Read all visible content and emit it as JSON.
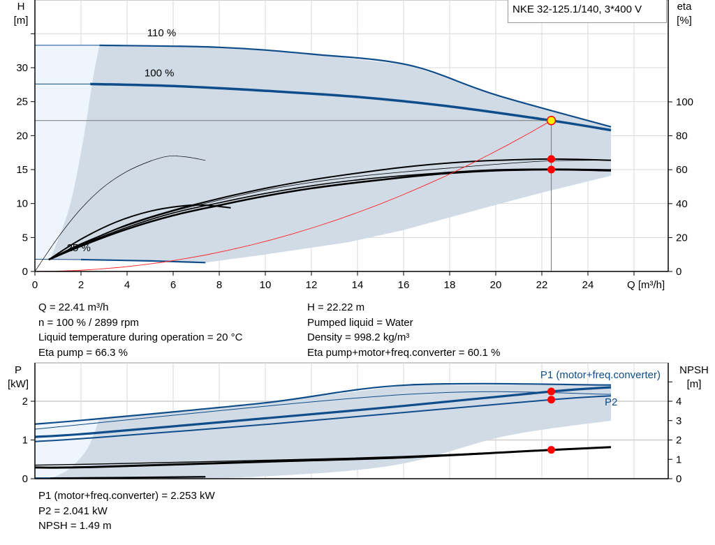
{
  "colors": {
    "curve_blue": "#0f4c8a",
    "area": "#d0dbe6",
    "area_light": "#eef5fd",
    "system_curve": "#ff2020",
    "duty_point": "#ffee00",
    "marker": "#ff0000",
    "grid": "#d9d9d9"
  },
  "title": "NKE 32-125.1/140, 3*400 V",
  "chart_data": [
    {
      "type": "line",
      "name": "head-efficiency",
      "ylabel_left": [
        "H",
        "[m]"
      ],
      "ylabel_right": [
        "eta",
        "[%]"
      ],
      "xlabel": "Q [m³/h]",
      "xlim": [
        0,
        27.5
      ],
      "ylim_left": [
        0,
        40
      ],
      "ylim_right": [
        0,
        160
      ],
      "x_ticks": [
        0,
        2,
        4,
        6,
        8,
        10,
        12,
        14,
        16,
        18,
        20,
        22,
        24
      ],
      "y_ticks_left": [
        0,
        5,
        10,
        15,
        20,
        25,
        30
      ],
      "y_ticks_right": [
        0,
        20,
        40,
        60,
        80,
        100
      ],
      "grid": true,
      "speed_labels": [
        {
          "text": "110 %",
          "x": 5.5,
          "y": 34.6
        },
        {
          "text": "100 %",
          "x": 5.4,
          "y": 28.7
        },
        {
          "text": "25 %",
          "x": 1.9,
          "y": 3.0
        }
      ],
      "head_curves": [
        {
          "speed": "110 %",
          "points": [
            [
              0,
              33.3
            ],
            [
              2.8,
              33.3
            ],
            [
              8,
              33
            ],
            [
              12,
              32
            ],
            [
              16.2,
              30.4
            ],
            [
              20,
              26
            ],
            [
              25,
              21.3
            ]
          ]
        },
        {
          "speed": "100 %",
          "points": [
            [
              0,
              27.6
            ],
            [
              2.4,
              27.6
            ],
            [
              6,
              27.3
            ],
            [
              10,
              26.6
            ],
            [
              14,
              25.7
            ],
            [
              18,
              24.3
            ],
            [
              22.41,
              22.22
            ],
            [
              25,
              20.8
            ]
          ]
        },
        {
          "speed": "25 %",
          "points": [
            [
              0,
              1.8
            ],
            [
              2,
              1.75
            ],
            [
              5,
              1.55
            ],
            [
              7.4,
              1.3
            ]
          ]
        }
      ],
      "operating_area_lower": [
        [
          25,
          14.1
        ],
        [
          22,
          11.6
        ],
        [
          20,
          9.8
        ],
        [
          16,
          6.1
        ],
        [
          13.6,
          4.3
        ],
        [
          10,
          2.5
        ],
        [
          7.4,
          1.3
        ]
      ],
      "operating_area_left": [
        [
          0.67,
          1.8
        ],
        [
          1.5,
          9.5
        ],
        [
          2.1,
          19.4
        ],
        [
          2.5,
          28
        ],
        [
          2.8,
          33.3
        ]
      ],
      "efficiency_curves": [
        {
          "points": [
            [
              0.6,
              7
            ],
            [
              2,
              15
            ],
            [
              4,
              25
            ],
            [
              6,
              33
            ],
            [
              8,
              39
            ],
            [
              10,
              44.5
            ],
            [
              12,
              49
            ],
            [
              14,
              52.5
            ],
            [
              16,
              55.5
            ],
            [
              18,
              58
            ],
            [
              20,
              59.5
            ],
            [
              22.41,
              60.1
            ],
            [
              25,
              59.5
            ]
          ],
          "width": 2.6
        },
        {
          "points": [
            [
              0.6,
              7
            ],
            [
              2,
              15.5
            ],
            [
              4,
              26
            ],
            [
              6,
              34.5
            ],
            [
              8,
              40.5
            ],
            [
              10,
              46
            ],
            [
              12,
              50.5
            ],
            [
              14,
              54
            ],
            [
              16,
              56.5
            ],
            [
              18,
              58.5
            ],
            [
              20,
              60
            ],
            [
              22.41,
              60.4
            ],
            [
              25,
              60
            ]
          ],
          "width": 1.6
        },
        {
          "points": [
            [
              0.6,
              7
            ],
            [
              2,
              16
            ],
            [
              4,
              27.5
            ],
            [
              6,
              36
            ],
            [
              8,
              43
            ],
            [
              10,
              49
            ],
            [
              12,
              54
            ],
            [
              14,
              58
            ],
            [
              16,
              61.5
            ],
            [
              18,
              64
            ],
            [
              20,
              65.5
            ],
            [
              22.41,
              66.3
            ],
            [
              25,
              65.6
            ]
          ],
          "width": 2.0
        },
        {
          "points": [
            [
              0.6,
              7
            ],
            [
              2,
              16.5
            ],
            [
              4,
              27
            ],
            [
              6,
              35.5
            ],
            [
              8,
              42
            ],
            [
              10,
              48
            ],
            [
              12,
              52.5
            ],
            [
              14,
              56
            ],
            [
              16,
              58.7
            ],
            [
              18,
              61
            ],
            [
              22,
              65
            ],
            [
              25,
              65.6
            ]
          ],
          "width": 0.8
        },
        {
          "points": [
            [
              0.6,
              7
            ],
            [
              2,
              19
            ],
            [
              3.5,
              29
            ],
            [
              5,
              35.5
            ],
            [
              6.5,
              38.8
            ],
            [
              7.5,
              39
            ],
            [
              8.5,
              37.5
            ]
          ],
          "width": 2.0
        },
        {
          "points": [
            [
              0,
              0
            ],
            [
              1,
              20
            ],
            [
              2,
              37
            ],
            [
              3,
              50
            ],
            [
              4,
              59
            ],
            [
              5,
              65
            ],
            [
              5.8,
              68
            ],
            [
              6.6,
              67.5
            ],
            [
              7.4,
              65.5
            ]
          ],
          "width": 0.7
        }
      ],
      "duty_point": {
        "Q": 22.41,
        "H": 22.22
      },
      "efficiency_points": [
        66.3,
        60.1
      ]
    },
    {
      "type": "line",
      "name": "power-npsh",
      "ylabel_left": [
        "P",
        "[kW]"
      ],
      "ylabel_right": [
        "NPSH",
        "[m]"
      ],
      "xlim": [
        0,
        27.5
      ],
      "ylim_left": [
        0,
        3
      ],
      "ylim_right": [
        0,
        6
      ],
      "y_ticks_left": [
        0,
        1,
        2
      ],
      "y_ticks_right": [
        0,
        1,
        2,
        3,
        4,
        5
      ],
      "y_tick_labels_right": [
        "0",
        "1",
        "2",
        "3",
        "4",
        ""
      ],
      "grid": true,
      "series_labels": [
        {
          "text": "P1 (motor+freq.converter)"
        },
        {
          "text": "P2"
        }
      ],
      "power_curves": [
        {
          "points": [
            [
              0,
              1.41
            ],
            [
              2.8,
              1.55
            ],
            [
              10,
              1.96
            ],
            [
              16.2,
              2.42
            ],
            [
              25,
              2.42
            ]
          ],
          "width": 2.2
        },
        {
          "points": [
            [
              0,
              1.28
            ],
            [
              16.2,
              2.18
            ],
            [
              25,
              2.18
            ]
          ],
          "width": 1.0
        },
        {
          "points": [
            [
              0,
              1.08
            ],
            [
              2.4,
              1.17
            ],
            [
              10,
              1.56
            ],
            [
              16,
              1.88
            ],
            [
              22.41,
              2.253
            ],
            [
              25,
              2.36
            ]
          ],
          "width": 3.2
        },
        {
          "points": [
            [
              0,
              0.96
            ],
            [
              2.4,
              1.05
            ],
            [
              10,
              1.4
            ],
            [
              16,
              1.71
            ],
            [
              22.41,
              2.041
            ],
            [
              25,
              2.14
            ]
          ],
          "width": 2.0
        },
        {
          "points": [
            [
              0,
              0.02
            ],
            [
              7.4,
              0.04
            ]
          ],
          "width": 1.5
        }
      ],
      "power_area_lower": [
        [
          25,
          1.5
        ],
        [
          20.4,
          1.1
        ],
        [
          15.6,
          0.35
        ],
        [
          9.6,
          0.05
        ],
        [
          4.5,
          0
        ]
      ],
      "power_area_left": [
        [
          0.67,
          0
        ],
        [
          1.5,
          0.26
        ],
        [
          2.3,
          0.8
        ],
        [
          2.8,
          1.55
        ]
      ],
      "npsh_curves": [
        {
          "points": [
            [
              0,
              0.7
            ],
            [
              2.8,
              0.76
            ],
            [
              10,
              0.95
            ],
            [
              16,
              1.15
            ],
            [
              22.41,
              1.49
            ],
            [
              25,
              1.63
            ]
          ],
          "width": 1.4
        },
        {
          "points": [
            [
              0,
              0.58
            ],
            [
              2.4,
              0.6
            ],
            [
              10,
              0.88
            ],
            [
              16,
              1.1
            ],
            [
              22.41,
              1.49
            ],
            [
              25,
              1.63
            ]
          ],
          "width": 3.0
        },
        {
          "points": [
            [
              0.67,
              0.02
            ],
            [
              7.4,
              0.1
            ]
          ],
          "width": 2.2
        }
      ],
      "operating_points": {
        "P1": 2.253,
        "P2": 2.041,
        "NPSH": 1.49
      }
    }
  ],
  "results_top": {
    "left": [
      "Q = 22.41 m³/h",
      "n = 100 % / 2899 rpm",
      "Liquid temperature during operation = 20 °C",
      "Eta pump = 66.3 %"
    ],
    "right": [
      "H = 22.22 m",
      "Pumped liquid = Water",
      "Density = 998.2 kg/m³",
      "Eta pump+motor+freq.converter = 60.1 %"
    ]
  },
  "results_bottom": [
    "P1 (motor+freq.converter) = 2.253 kW",
    "P2 = 2.041 kW",
    "NPSH = 1.49 m"
  ]
}
